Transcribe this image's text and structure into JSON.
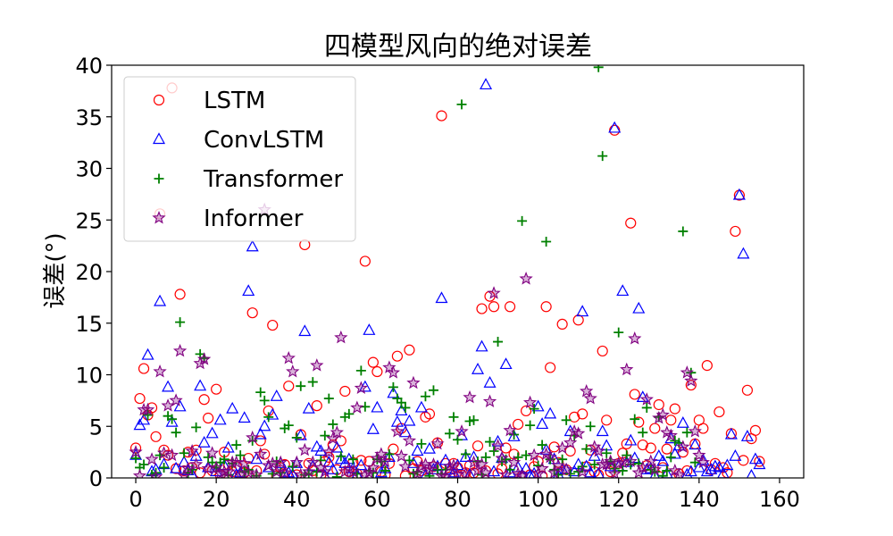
{
  "chart_data": {
    "type": "scatter",
    "title": "四模型风向的绝对误差",
    "xlabel": "",
    "ylabel": "误差(°)",
    "xlim": [
      -6,
      166
    ],
    "ylim": [
      0,
      40
    ],
    "x_ticks": [
      "0",
      "20",
      "40",
      "60",
      "80",
      "100",
      "120",
      "140",
      "160"
    ],
    "y_ticks": [
      "0",
      "5",
      "10",
      "15",
      "20",
      "25",
      "30",
      "35",
      "40"
    ],
    "grid": false,
    "legend_position": "top-left",
    "series": [
      {
        "name": "LSTM",
        "marker": "circle",
        "color": "#ff0000",
        "values": [
          2.9,
          7.7,
          10.6,
          6.1,
          6.8,
          4.0,
          25.6,
          2.7,
          2.2,
          37.8,
          0.9,
          17.8,
          0.7,
          2.5,
          1.0,
          2.7,
          0.5,
          7.6,
          5.8,
          0.7,
          8.6,
          0.3,
          2.5,
          1.3,
          0.6,
          1.1,
          0.3,
          0.5,
          1.9,
          16.0,
          0.7,
          3.6,
          2.3,
          6.5,
          14.8,
          0.2,
          1.0,
          1.3,
          8.9,
          0.1,
          0.3,
          4.2,
          22.6,
          1.4,
          0.7,
          7.0,
          0.3,
          1.6,
          2.0,
          3.2,
          0.8,
          3.6,
          8.4,
          0.6,
          1.5,
          0.4,
          1.7,
          21.0,
          1.6,
          11.2,
          10.3,
          0.6,
          0.3,
          1.4,
          2.8,
          11.8,
          4.8,
          0.2,
          12.4,
          0.9,
          1.6,
          0.7,
          5.9,
          6.2,
          1.1,
          3.4,
          35.1,
          1.4,
          0.1,
          1.4,
          1.0,
          0.3,
          0.5,
          1.2,
          0.5,
          3.1,
          16.4,
          0.7,
          17.6,
          16.6,
          0.4,
          0.9,
          2.9,
          16.6,
          2.3,
          5.2,
          0.2,
          6.5,
          0.3,
          1.1,
          1.6,
          0.2,
          16.6,
          10.7,
          3.0,
          1.5,
          14.9,
          0.8,
          2.6,
          5.9,
          15.3,
          6.2,
          1.1,
          2.7,
          0.6,
          0.3,
          12.3,
          5.6,
          0.6,
          33.7,
          1.4,
          2.4,
          3.3,
          24.7,
          8.1,
          5.4,
          3.2,
          1.2,
          2.9,
          4.8,
          7.1,
          1.0,
          2.8,
          5.6,
          6.7,
          0.4,
          2.5,
          0.7,
          9.0,
          3.3,
          5.6,
          4.8,
          10.9,
          0.8,
          1.4,
          6.4,
          1.0,
          0.5,
          4.3,
          23.9,
          27.4,
          1.7,
          8.5,
          3.8,
          4.6,
          1.6
        ]
      },
      {
        "name": "ConvLSTM",
        "marker": "triangle",
        "color": "#0000ff",
        "values": [
          2.2,
          5.1,
          5.6,
          11.9,
          0.6,
          0.8,
          17.1,
          1.3,
          8.8,
          5.4,
          0.9,
          6.9,
          1.5,
          0.7,
          0.3,
          2.1,
          8.9,
          3.4,
          1.0,
          4.3,
          0.6,
          5.6,
          1.2,
          2.9,
          6.7,
          0.3,
          0.5,
          5.8,
          18.1,
          22.4,
          1.8,
          4.2,
          5.0,
          1.0,
          6.1,
          7.9,
          1.4,
          0.4,
          0.5,
          0.3,
          1.4,
          4.1,
          14.2,
          6.7,
          1.1,
          3.0,
          2.6,
          0.2,
          1.5,
          0.8,
          2.9,
          1.8,
          1.4,
          1.8,
          0.9,
          0.3,
          1.2,
          8.8,
          14.3,
          4.7,
          6.8,
          0.5,
          0.9,
          2.0,
          8.2,
          5.4,
          6.5,
          4.4,
          5.5,
          1.4,
          2.6,
          6.8,
          0.2,
          2.8,
          0.8,
          1.1,
          17.4,
          1.7,
          0.8,
          0.5,
          1.2,
          4.1,
          2.0,
          0.3,
          2.0,
          10.5,
          12.7,
          38.1,
          9.2,
          0.6,
          3.5,
          1.9,
          11.0,
          0.5,
          4.0,
          1.0,
          0.3,
          0.9,
          0.2,
          0.4,
          6.9,
          5.2,
          2.7,
          6.2,
          1.8,
          0.3,
          0.8,
          0.8,
          4.5,
          0.6,
          1.3,
          16.1,
          1.1,
          0.5,
          2.1,
          0.4,
          4.5,
          3.1,
          1.1,
          33.9,
          1.1,
          18.1,
          1.5,
          3.6,
          1.9,
          16.4,
          7.8,
          0.8,
          0.9,
          0.2,
          2.1,
          1.6,
          0.4,
          3.8,
          2.3,
          3.1,
          5.3,
          0.3,
          0.6,
          3.2,
          1.0,
          1.7,
          0.6,
          0.8,
          1.1,
          1.0,
          0.4,
          1.2,
          4.2,
          2.1,
          27.4,
          21.7,
          4.0,
          0.2,
          1.8,
          1.3
        ]
      },
      {
        "name": "Transformer",
        "marker": "plus",
        "color": "#008000",
        "values": [
          1.9,
          1.0,
          1.3,
          6.1,
          0.3,
          0.5,
          2.2,
          1.0,
          6.0,
          5.7,
          4.4,
          15.1,
          2.4,
          0.5,
          0.8,
          4.9,
          12.0,
          11.6,
          2.0,
          1.5,
          1.0,
          1.5,
          1.8,
          0.3,
          1.4,
          3.2,
          2.2,
          0.6,
          0.8,
          3.6,
          0.2,
          8.3,
          7.5,
          5.9,
          0.4,
          1.6,
          0.5,
          4.8,
          5.1,
          1.1,
          3.9,
          8.9,
          0.3,
          0.4,
          9.3,
          0.6,
          1.7,
          4.1,
          7.7,
          5.2,
          0.1,
          2.1,
          5.9,
          6.2,
          1.8,
          0.4,
          10.4,
          6.9,
          0.7,
          0.5,
          1.8,
          1.6,
          0.7,
          2.3,
          8.8,
          7.7,
          7.3,
          6.8,
          1.7,
          0.4,
          0.6,
          3.3,
          7.9,
          0.2,
          8.5,
          0.8,
          0.4,
          0.8,
          4.3,
          5.9,
          3.7,
          36.2,
          2.3,
          5.5,
          5.6,
          1.6,
          0.3,
          2.0,
          3.5,
          2.6,
          13.2,
          1.6,
          1.8,
          0.8,
          4.2,
          2.0,
          24.9,
          2.2,
          5.1,
          6.7,
          1.2,
          3.2,
          22.9,
          1.8,
          0.8,
          0.3,
          1.8,
          5.6,
          0.4,
          4.1,
          0.6,
          1.1,
          2.8,
          5.0,
          1.3,
          39.8,
          31.2,
          2.4,
          1.6,
          0.9,
          14.1,
          0.7,
          2.2,
          1.3,
          5.7,
          1.4,
          4.4,
          6.8,
          0.8,
          0.6,
          5.9,
          0.2,
          0.7,
          2.0,
          3.6,
          3.4,
          23.9,
          4.4,
          10.2,
          1.5
        ]
      },
      {
        "name": "Informer",
        "marker": "star",
        "color": "#800080",
        "values": [
          2.5,
          0.2,
          6.6,
          6.6,
          1.8,
          0.1,
          10.3,
          2.4,
          7.0,
          2.2,
          7.5,
          12.3,
          0.2,
          0.9,
          2.6,
          1.3,
          11.1,
          11.5,
          0.9,
          2.4,
          1.0,
          0.4,
          0.6,
          0.6,
          1.5,
          1.5,
          0.3,
          1.4,
          0.5,
          3.9,
          0.3,
          2.3,
          26.0,
          1.2,
          1.4,
          0.6,
          1.5,
          0.5,
          11.6,
          10.3,
          1.5,
          0.3,
          2.7,
          0.6,
          1.5,
          10.9,
          1.0,
          0.6,
          2.5,
          3.8,
          4.4,
          13.6,
          0.6,
          0.9,
          0.6,
          6.8,
          8.7,
          0.3,
          0.5,
          1.0,
          1.9,
          2.3,
          1.6,
          10.7,
          10.2,
          4.5,
          2.1,
          1.1,
          3.6,
          9.2,
          0.4,
          1.1,
          1.3,
          0.8,
          1.3,
          3.3,
          0.2,
          0.1,
          1.1,
          1.2,
          0.3,
          4.5,
          0.4,
          7.8,
          1.5,
          0.7,
          1.3,
          0.5,
          7.4,
          17.9,
          3.1,
          1.9,
          0.3,
          4.6,
          1.5,
          0.4,
          0.2,
          19.3,
          7.3,
          2.2,
          0.4,
          0.9,
          2.3,
          2.0,
          0.5,
          1.2,
          2.9,
          0.8,
          3.4,
          4.5,
          4.3,
          0.6,
          8.4,
          7.7,
          3.0,
          2.6,
          1.3,
          1.3,
          1.6,
          0.4,
          1.4,
          1.5,
          10.5,
          1.6,
          13.5,
          0.5,
          1.0,
          7.6,
          1.6,
          0.8,
          5.8,
          6.1,
          4.4,
          4.1,
          0.7,
          0.3,
          3.0,
          10.2,
          9.4,
          4.5,
          2.2,
          1.5
        ]
      }
    ]
  }
}
